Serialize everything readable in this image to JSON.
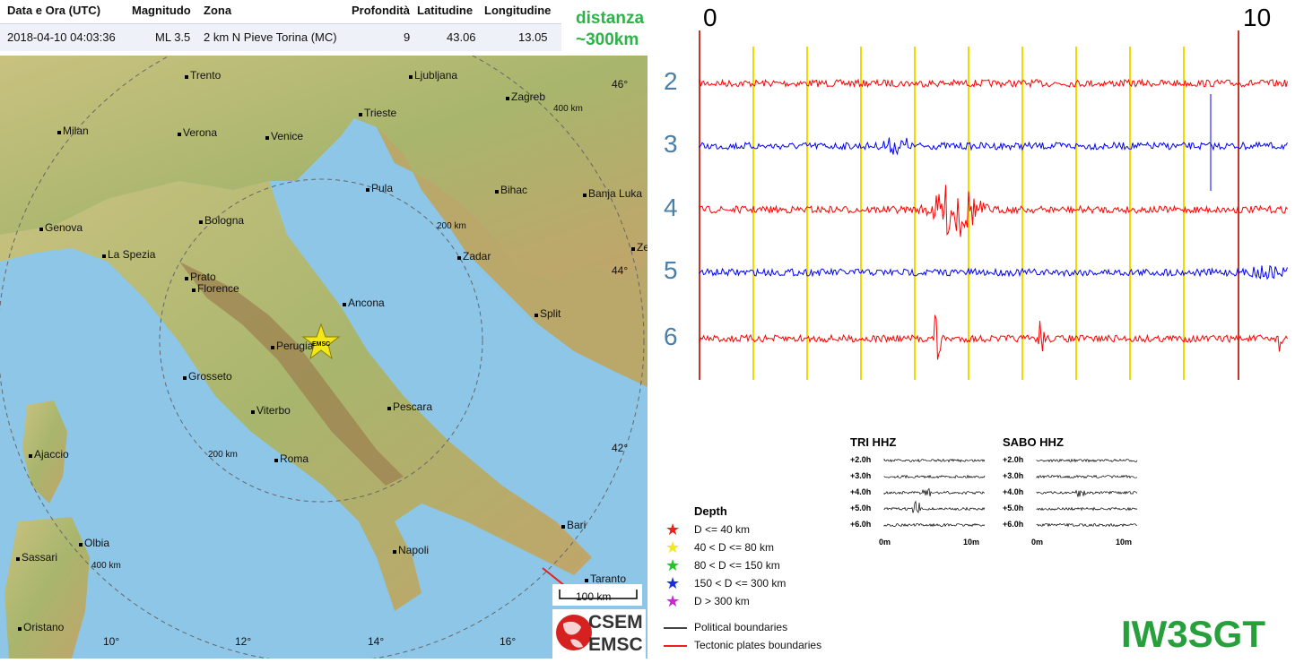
{
  "table": {
    "headers": {
      "datetime": "Data e Ora (UTC)",
      "magnitude": "Magnitudo",
      "zone": "Zona",
      "depth": "Profondità",
      "lat": "Latitudine",
      "lon": "Longitudine"
    },
    "row": {
      "datetime": "2018-04-10 04:03:36",
      "magnitude": "ML 3.5",
      "zone": "2 km N Pieve Torina (MC)",
      "depth": "9",
      "lat": "43.06",
      "lon": "13.05"
    }
  },
  "distance_note": {
    "line1": "distanza",
    "line2": "~300km"
  },
  "map": {
    "cities": [
      "Trento",
      "Ljubljana",
      "Zagreb",
      "Milan",
      "Verona",
      "Venice",
      "Trieste",
      "Pula",
      "Bihac",
      "Banja Luka",
      "Genova",
      "Bologna",
      "Zadar",
      "La Spezia",
      "Prato",
      "Florence",
      "Ancona",
      "Split",
      "Perugia",
      "Grosseto",
      "Pescara",
      "Viterbo",
      "Ajaccio",
      "Roma",
      "Bari",
      "Olbia",
      "Sassari",
      "Napoli",
      "Taranto",
      "Oristano",
      "Ze"
    ],
    "lat_labels": [
      "46°",
      "44°",
      "42°"
    ],
    "lon_labels": [
      "10°",
      "12°",
      "14°",
      "16°"
    ],
    "ring_labels": [
      "400 km",
      "200 km",
      "200 km",
      "400 km"
    ],
    "epicenter_label": "EMSC",
    "scale_label": "100 km",
    "logo": {
      "line1": "CSEM",
      "line2": "EMSC"
    }
  },
  "legend": {
    "title": "Depth",
    "items": [
      {
        "label": "D <= 40 km",
        "color": "#e8221c"
      },
      {
        "label": "40 < D <= 80 km",
        "color": "#f4e61c"
      },
      {
        "label": "80 < D <= 150 km",
        "color": "#22c42a"
      },
      {
        "label": "150 < D <= 300 km",
        "color": "#1a2fd6"
      },
      {
        "label": "D > 300 km",
        "color": "#c42ad0"
      }
    ],
    "boundaries": [
      {
        "label": "Political boundaries",
        "color": "#444444"
      },
      {
        "label": "Tectonic plates boundaries",
        "color": "#e8221c"
      }
    ]
  },
  "seismogram": {
    "axis_start": "0",
    "axis_end": "10",
    "hours": [
      "2",
      "3",
      "4",
      "5",
      "6"
    ],
    "trace_colors": [
      "#ff0000",
      "#0000ff",
      "#ff0000",
      "#0000ff",
      "#ff0000"
    ],
    "grid_color": "#f0d800"
  },
  "mini_panels": [
    {
      "title": "TRI HHZ",
      "rows": [
        "+2.0h",
        "+3.0h",
        "+4.0h",
        "+5.0h",
        "+6.0h"
      ],
      "xlabels": [
        "0m",
        "10m"
      ]
    },
    {
      "title": "SABO HHZ",
      "rows": [
        "+2.0h",
        "+3.0h",
        "+4.0h",
        "+5.0h",
        "+6.0h"
      ],
      "xlabels": [
        "0m",
        "10m"
      ]
    }
  ],
  "callsign": "IW3SGT"
}
